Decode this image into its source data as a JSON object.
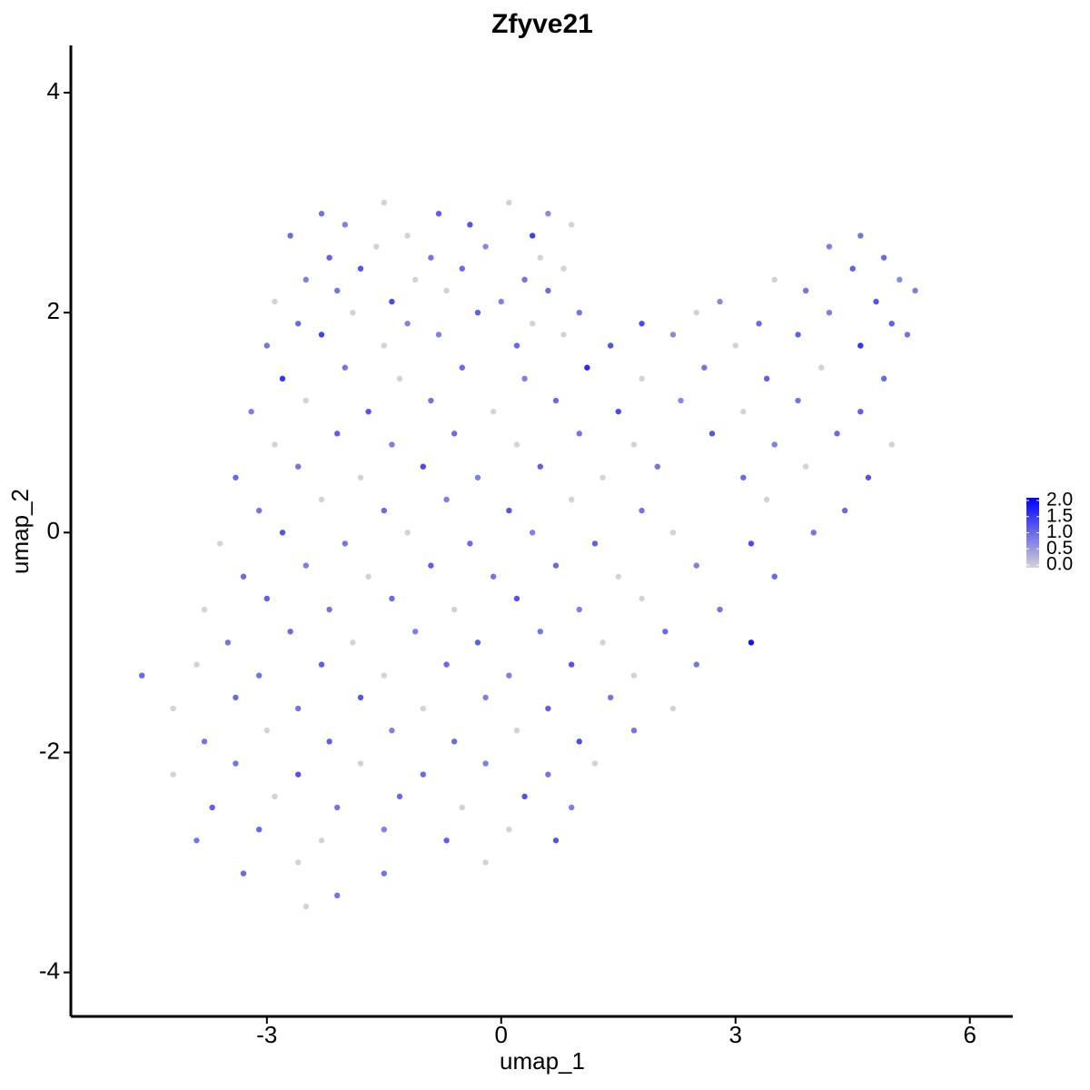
{
  "chart_data": {
    "type": "scatter",
    "title": "Zfyve21",
    "x_label": "umap_1",
    "y_label": "umap_2",
    "xlim": [
      -5.51,
      6.55
    ],
    "ylim": [
      -4.4,
      4.43
    ],
    "xticks": [
      -3,
      0,
      3,
      6
    ],
    "yticks": [
      -4,
      -2,
      0,
      2,
      4
    ],
    "colors": [
      "#d3d3d3",
      "#0000ff"
    ],
    "clim": [
      0,
      2.0
    ],
    "colorbar_ticks": [
      {
        "value": 0,
        "label": "0.0"
      },
      0.5,
      {
        "value": 1,
        "label": "1.0"
      },
      1.5,
      {
        "value": 2,
        "label": "2.0"
      }
    ],
    "x": [
      -2.3,
      -1.5,
      -0.8,
      0.1,
      0.6,
      -2.7,
      -2.0,
      -1.2,
      -0.4,
      0.4,
      0.9,
      4.6,
      -2.2,
      -1.6,
      -0.9,
      -0.2,
      0.5,
      4.2,
      4.9,
      -2.5,
      -1.8,
      -1.1,
      -0.5,
      0.3,
      0.8,
      3.5,
      4.5,
      5.1,
      -2.9,
      -2.1,
      -1.4,
      -0.7,
      0.0,
      0.6,
      2.8,
      3.9,
      4.8,
      5.3,
      -2.6,
      -1.9,
      -1.2,
      -0.3,
      0.4,
      1.0,
      1.8,
      2.5,
      3.3,
      4.2,
      5.0,
      -3.0,
      -2.3,
      -1.5,
      -0.8,
      0.2,
      0.8,
      1.4,
      2.2,
      3.0,
      3.8,
      4.6,
      5.2,
      -2.8,
      -2.0,
      -1.3,
      -0.5,
      0.3,
      1.1,
      1.8,
      2.6,
      3.4,
      4.1,
      4.9,
      -3.2,
      -2.5,
      -1.7,
      -0.9,
      -0.1,
      0.7,
      1.5,
      2.3,
      3.1,
      3.8,
      4.6,
      -2.9,
      -2.1,
      -1.4,
      -0.6,
      0.2,
      1.0,
      1.7,
      2.7,
      3.5,
      4.3,
      5.0,
      -3.4,
      -2.6,
      -1.8,
      -1.0,
      -0.3,
      0.5,
      1.3,
      2.0,
      3.1,
      3.9,
      4.7,
      -3.1,
      -2.3,
      -1.5,
      -0.7,
      0.1,
      0.9,
      1.8,
      3.4,
      4.4,
      -3.6,
      -2.8,
      -2.0,
      -1.2,
      -0.4,
      0.4,
      1.2,
      2.2,
      3.2,
      4.0,
      -3.3,
      -2.5,
      -1.7,
      -0.9,
      -0.1,
      0.7,
      1.5,
      2.5,
      3.5,
      -3.8,
      -3.0,
      -2.2,
      -1.4,
      -0.6,
      0.2,
      1.0,
      1.8,
      2.8,
      -3.5,
      -2.7,
      -1.9,
      -1.1,
      -0.3,
      0.5,
      1.3,
      2.1,
      3.2,
      -4.6,
      -3.9,
      -3.1,
      -2.3,
      -1.5,
      -0.7,
      0.1,
      0.9,
      1.7,
      2.5,
      -4.2,
      -3.4,
      -2.6,
      -1.8,
      -1.0,
      -0.2,
      0.6,
      1.4,
      2.2,
      -3.8,
      -3.0,
      -2.2,
      -1.4,
      -0.6,
      0.2,
      1.0,
      1.7,
      -4.2,
      -3.4,
      -2.6,
      -1.8,
      -1.0,
      -0.2,
      0.6,
      1.2,
      -3.7,
      -2.9,
      -2.1,
      -1.3,
      -0.5,
      0.3,
      0.9,
      -3.9,
      -3.1,
      -2.3,
      -1.5,
      -0.7,
      0.1,
      0.7,
      -3.3,
      -2.6,
      -1.5,
      -0.2,
      -2.5,
      -2.1
    ],
    "values": [
      2.9,
      3.0,
      2.9,
      3.0,
      2.9,
      2.7,
      2.8,
      2.7,
      2.8,
      2.7,
      2.8,
      2.7,
      2.5,
      2.6,
      2.5,
      2.6,
      2.5,
      2.6,
      2.5,
      2.3,
      2.4,
      2.3,
      2.4,
      2.3,
      2.4,
      2.3,
      2.4,
      2.3,
      2.1,
      2.2,
      2.1,
      2.2,
      2.1,
      2.2,
      2.1,
      2.2,
      2.1,
      2.2,
      1.9,
      2.0,
      1.9,
      2.0,
      1.9,
      2.0,
      1.9,
      2.0,
      1.9,
      2.0,
      1.9,
      1.7,
      1.8,
      1.7,
      1.8,
      1.7,
      1.8,
      1.7,
      1.8,
      1.7,
      1.8,
      1.7,
      1.8,
      1.4,
      1.5,
      1.4,
      1.5,
      1.4,
      1.5,
      1.4,
      1.5,
      1.4,
      1.5,
      1.4,
      1.1,
      1.2,
      1.1,
      1.2,
      1.1,
      1.2,
      1.1,
      1.2,
      1.1,
      1.2,
      1.1,
      0.8,
      0.9,
      0.8,
      0.9,
      0.8,
      0.9,
      0.8,
      0.9,
      0.8,
      0.9,
      0.8,
      0.5,
      0.6,
      0.5,
      0.6,
      0.5,
      0.6,
      0.5,
      0.6,
      0.5,
      0.6,
      0.5,
      0.2,
      0.3,
      0.2,
      0.3,
      0.2,
      0.3,
      0.2,
      0.3,
      0.2,
      -0.1,
      0.0,
      -0.1,
      0.0,
      -0.1,
      0.0,
      -0.1,
      0.0,
      -0.1,
      0.0,
      -0.4,
      -0.3,
      -0.4,
      -0.3,
      -0.4,
      -0.3,
      -0.4,
      -0.3,
      -0.4,
      -0.7,
      -0.6,
      -0.7,
      -0.6,
      -0.7,
      -0.6,
      -0.7,
      -0.6,
      -0.7,
      -1.0,
      -0.9,
      -1.0,
      -0.9,
      -1.0,
      -0.9,
      -1.0,
      -0.9,
      -1.0,
      -1.3,
      -1.2,
      -1.3,
      -1.2,
      -1.3,
      -1.2,
      -1.3,
      -1.2,
      -1.3,
      -1.2,
      -1.6,
      -1.5,
      -1.6,
      -1.5,
      -1.6,
      -1.5,
      -1.6,
      -1.5,
      -1.6,
      -1.9,
      -1.8,
      -1.9,
      -1.8,
      -1.9,
      -1.8,
      -1.9,
      -1.8,
      -2.2,
      -2.1,
      -2.2,
      -2.1,
      -2.2,
      -2.1,
      -2.2,
      -2.1,
      -2.5,
      -2.4,
      -2.5,
      -2.4,
      -2.5,
      -2.4,
      -2.5,
      -2.8,
      -2.7,
      -2.8,
      -2.7,
      -2.8,
      -2.7,
      -2.8,
      -3.1,
      -3.0,
      -3.1,
      -3.0,
      -3.4,
      -3.3
    ],
    "color_values": [
      0.9,
      0,
      1.1,
      0,
      0.7,
      1.0,
      0.8,
      0,
      1.2,
      1.4,
      0,
      0.9,
      1.1,
      0,
      0.9,
      0.7,
      0,
      0.8,
      1.0,
      0.8,
      1.2,
      0,
      1.0,
      0.9,
      0,
      0,
      1.1,
      0.7,
      0,
      0.9,
      1.3,
      0,
      0.8,
      1.0,
      0.7,
      0.9,
      1.2,
      0.8,
      1.0,
      0,
      0.8,
      1.1,
      0,
      0.9,
      1.3,
      0,
      1.0,
      0.8,
      1.1,
      0.9,
      1.4,
      0,
      0.8,
      1.0,
      0,
      1.2,
      0.7,
      0,
      1.1,
      1.5,
      0.9,
      1.5,
      0.9,
      0,
      1.0,
      0.8,
      1.6,
      0,
      0.9,
      1.1,
      0,
      1.0,
      0.8,
      0,
      1.2,
      0.9,
      0,
      1.0,
      1.3,
      0.7,
      0,
      0.9,
      1.1,
      0,
      1.1,
      0.8,
      1.0,
      0,
      0.9,
      0,
      1.2,
      0.8,
      1.0,
      0,
      1.0,
      0.9,
      0,
      1.3,
      0.8,
      1.1,
      0,
      0.9,
      1.0,
      0,
      1.2,
      0.9,
      0,
      1.0,
      0.8,
      1.2,
      0,
      0.9,
      0,
      1.0,
      0,
      1.2,
      0.9,
      0,
      1.0,
      0.8,
      1.1,
      0,
      1.3,
      0.9,
      1.0,
      0.8,
      0,
      1.1,
      0.9,
      1.0,
      0,
      0.8,
      1.0,
      0,
      1.1,
      0.9,
      1.0,
      0,
      1.2,
      0.8,
      0,
      0.9,
      0.9,
      1.0,
      0,
      0.8,
      1.1,
      0.9,
      0,
      1.0,
      1.8,
      1.0,
      0,
      0.9,
      1.1,
      0,
      1.0,
      0.8,
      1.2,
      0,
      0.9,
      0,
      1.0,
      0.9,
      1.2,
      0,
      0.8,
      1.1,
      0.9,
      0,
      0.9,
      0,
      1.1,
      0.8,
      1.0,
      0,
      1.3,
      0.9,
      0,
      0.9,
      1.2,
      0,
      1.0,
      0.8,
      0.9,
      0,
      1.1,
      0,
      0.9,
      1.0,
      0,
      1.2,
      0.8,
      0.9,
      1.0,
      0,
      0.8,
      1.1,
      0,
      1.2,
      1.0,
      0,
      0.9,
      0,
      0,
      0.9
    ]
  }
}
